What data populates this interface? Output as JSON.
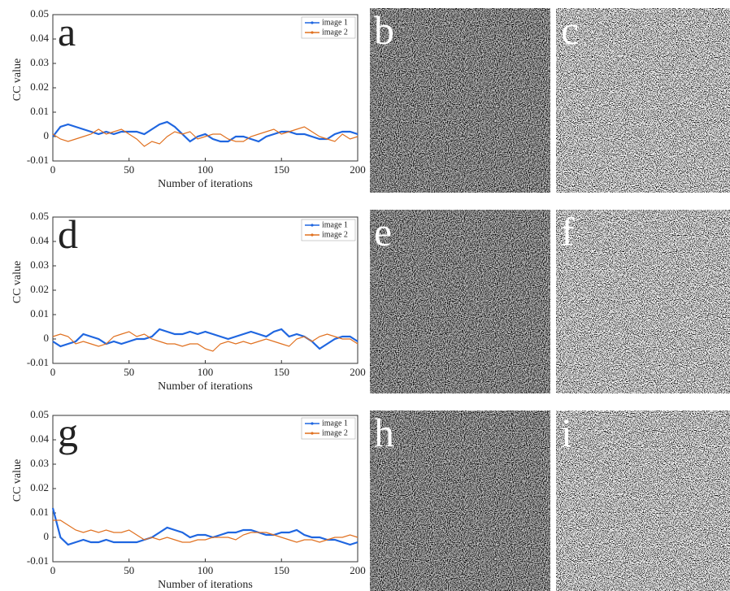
{
  "chart_data": [
    {
      "type": "line",
      "panel_label": "a",
      "xlabel": "Number of iterations",
      "ylabel": "CC value",
      "x": [
        0,
        5,
        10,
        15,
        20,
        25,
        30,
        35,
        40,
        45,
        50,
        55,
        60,
        65,
        70,
        75,
        80,
        85,
        90,
        95,
        100,
        105,
        110,
        115,
        120,
        125,
        130,
        135,
        140,
        145,
        150,
        155,
        160,
        165,
        170,
        175,
        180,
        185,
        190,
        195,
        200
      ],
      "xlim": [
        0,
        200
      ],
      "ylim": [
        -0.01,
        0.05
      ],
      "xticks": [
        0,
        50,
        100,
        150,
        200
      ],
      "yticks": [
        -0.01,
        0,
        0.01,
        0.02,
        0.03,
        0.04,
        0.05
      ],
      "legend": "upper right",
      "series": [
        {
          "name": "image 1",
          "color": "#1f66e0",
          "values": [
            0,
            0.004,
            0.005,
            0.004,
            0.003,
            0.002,
            0.001,
            0.002,
            0.001,
            0.002,
            0.002,
            0.002,
            0.001,
            0.003,
            0.005,
            0.006,
            0.004,
            0.001,
            -0.002,
            0,
            0.001,
            -0.001,
            -0.002,
            -0.002,
            0,
            0,
            -0.001,
            -0.002,
            0,
            0.001,
            0.002,
            0.002,
            0.001,
            0.001,
            0,
            -0.001,
            -0.001,
            0.001,
            0.002,
            0.002,
            0.001
          ]
        },
        {
          "name": "image 2",
          "color": "#e0701f",
          "values": [
            0.001,
            -0.001,
            -0.002,
            -0.001,
            0,
            0.001,
            0.003,
            0.001,
            0.002,
            0.003,
            0.001,
            -0.001,
            -0.004,
            -0.002,
            -0.003,
            0,
            0.002,
            0.001,
            0.002,
            -0.001,
            0,
            0.001,
            0.001,
            -0.001,
            -0.002,
            -0.002,
            0,
            0.001,
            0.002,
            0.003,
            0.001,
            0.002,
            0.003,
            0.004,
            0.002,
            0,
            -0.001,
            -0.002,
            0.001,
            -0.001,
            0
          ]
        }
      ]
    },
    {
      "type": "line",
      "panel_label": "d",
      "xlabel": "Number of iterations",
      "ylabel": "CC value",
      "x": [
        0,
        5,
        10,
        15,
        20,
        25,
        30,
        35,
        40,
        45,
        50,
        55,
        60,
        65,
        70,
        75,
        80,
        85,
        90,
        95,
        100,
        105,
        110,
        115,
        120,
        125,
        130,
        135,
        140,
        145,
        150,
        155,
        160,
        165,
        170,
        175,
        180,
        185,
        190,
        195,
        200
      ],
      "xlim": [
        0,
        200
      ],
      "ylim": [
        -0.01,
        0.05
      ],
      "xticks": [
        0,
        50,
        100,
        150,
        200
      ],
      "yticks": [
        -0.01,
        0,
        0.01,
        0.02,
        0.03,
        0.04,
        0.05
      ],
      "legend": "upper right",
      "series": [
        {
          "name": "image 1",
          "color": "#1f66e0",
          "values": [
            -0.001,
            -0.003,
            -0.002,
            -0.001,
            0.002,
            0.001,
            0,
            -0.002,
            -0.001,
            -0.002,
            -0.001,
            0,
            0,
            0.001,
            0.004,
            0.003,
            0.002,
            0.002,
            0.003,
            0.002,
            0.003,
            0.002,
            0.001,
            0,
            0.001,
            0.002,
            0.003,
            0.002,
            0.001,
            0.003,
            0.004,
            0.001,
            0.002,
            0.001,
            -0.001,
            -0.004,
            -0.002,
            0,
            0.001,
            0.001,
            -0.001
          ]
        },
        {
          "name": "image 2",
          "color": "#e0701f",
          "values": [
            0.001,
            0.002,
            0.001,
            -0.002,
            -0.001,
            -0.002,
            -0.003,
            -0.002,
            0.001,
            0.002,
            0.003,
            0.001,
            0.002,
            0,
            -0.001,
            -0.002,
            -0.002,
            -0.003,
            -0.002,
            -0.002,
            -0.004,
            -0.005,
            -0.002,
            -0.001,
            -0.002,
            -0.001,
            -0.002,
            -0.001,
            0,
            -0.001,
            -0.002,
            -0.003,
            0,
            0.001,
            -0.001,
            0.001,
            0.002,
            0.001,
            0,
            0,
            -0.002
          ]
        }
      ]
    },
    {
      "type": "line",
      "panel_label": "g",
      "xlabel": "Number of iterations",
      "ylabel": "CC value",
      "x": [
        0,
        5,
        10,
        15,
        20,
        25,
        30,
        35,
        40,
        45,
        50,
        55,
        60,
        65,
        70,
        75,
        80,
        85,
        90,
        95,
        100,
        105,
        110,
        115,
        120,
        125,
        130,
        135,
        140,
        145,
        150,
        155,
        160,
        165,
        170,
        175,
        180,
        185,
        190,
        195,
        200
      ],
      "xlim": [
        0,
        200
      ],
      "ylim": [
        -0.01,
        0.05
      ],
      "xticks": [
        0,
        50,
        100,
        150,
        200
      ],
      "yticks": [
        -0.01,
        0,
        0.01,
        0.02,
        0.03,
        0.04,
        0.05
      ],
      "legend": "upper right",
      "series": [
        {
          "name": "image 1",
          "color": "#1f66e0",
          "values": [
            0.012,
            0,
            -0.003,
            -0.002,
            -0.001,
            -0.002,
            -0.002,
            -0.001,
            -0.002,
            -0.002,
            -0.002,
            -0.002,
            -0.001,
            0,
            0.002,
            0.004,
            0.003,
            0.002,
            0,
            0.001,
            0.001,
            0,
            0.001,
            0.002,
            0.002,
            0.003,
            0.003,
            0.002,
            0.001,
            0.001,
            0.002,
            0.002,
            0.003,
            0.001,
            0,
            0,
            -0.001,
            -0.001,
            -0.002,
            -0.003,
            -0.002
          ]
        },
        {
          "name": "image 2",
          "color": "#e0701f",
          "values": [
            0.007,
            0.007,
            0.005,
            0.003,
            0.002,
            0.003,
            0.002,
            0.003,
            0.002,
            0.002,
            0.003,
            0.001,
            -0.001,
            0,
            -0.001,
            0,
            -0.001,
            -0.002,
            -0.002,
            -0.001,
            -0.001,
            0,
            0,
            0,
            -0.001,
            0.001,
            0.002,
            0.002,
            0.002,
            0.001,
            0,
            -0.001,
            -0.002,
            -0.001,
            -0.001,
            -0.002,
            -0.001,
            0,
            0,
            0.001,
            0
          ]
        }
      ]
    }
  ],
  "images": [
    {
      "label": "b"
    },
    {
      "label": "c"
    },
    {
      "label": "e"
    },
    {
      "label": "f"
    },
    {
      "label": "h"
    },
    {
      "label": "i"
    }
  ]
}
